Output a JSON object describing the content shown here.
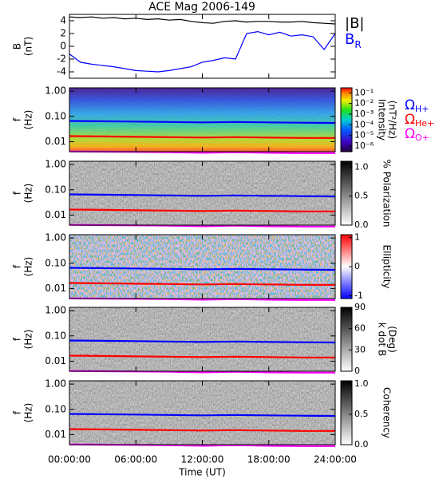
{
  "chart_data": [
    {
      "type": "line",
      "title": "ACE Mag 2006-149",
      "ylabel": [
        "B",
        "(nT)"
      ],
      "x": [
        0,
        1,
        2,
        3,
        4,
        5,
        6,
        7,
        8,
        9,
        10,
        11,
        12,
        13,
        14,
        15,
        16,
        17,
        18,
        19,
        20,
        21,
        22,
        23,
        24
      ],
      "xlim": [
        0,
        24
      ],
      "ylim": [
        -5,
        5
      ],
      "yticks": [
        -4,
        -2,
        0,
        2,
        4
      ],
      "series": [
        {
          "name": "|B|",
          "color": "#000000",
          "values": [
            4.6,
            4.5,
            4.6,
            4.4,
            4.5,
            4.3,
            4.4,
            4.2,
            4.3,
            4.1,
            4.2,
            3.9,
            3.7,
            3.6,
            3.9,
            4.0,
            3.8,
            3.9,
            3.9,
            3.8,
            3.8,
            3.9,
            3.7,
            3.6,
            3.5
          ]
        },
        {
          "name": "B",
          "name_sub": "R",
          "color": "#0000ff",
          "values": [
            -1.2,
            -2.5,
            -2.8,
            -3.0,
            -3.2,
            -3.5,
            -3.8,
            -3.9,
            -4.0,
            -3.8,
            -3.5,
            -3.2,
            -2.5,
            -2.2,
            -1.8,
            -2.0,
            2.0,
            2.3,
            1.8,
            2.2,
            1.6,
            1.8,
            1.5,
            -0.5,
            2.0
          ]
        }
      ]
    },
    {
      "type": "spectrogram",
      "ylabel": [
        "f",
        "(Hz)"
      ],
      "log_y": true,
      "xlim": [
        0,
        24
      ],
      "ylim": [
        0.004,
        1.35
      ],
      "yticks": [
        {
          "value": 1,
          "label": "1.00"
        },
        {
          "value": 0.1,
          "label": "0.10"
        },
        0.01
      ],
      "colormap": "rainbow",
      "colorbar": {
        "label": [
          "Intensity",
          "(nT²/Hz)"
        ],
        "log": true,
        "lim": [
          3e-07,
          0.3
        ],
        "ticks": [
          {
            "value": 0.1,
            "label": "10⁻¹"
          },
          {
            "value": 0.01,
            "label": "10⁻²"
          },
          {
            "value": 0.001,
            "label": "10⁻³"
          },
          {
            "value": 0.0001,
            "label": "10⁻⁴"
          },
          {
            "value": 1e-05,
            "label": "10⁻⁵"
          },
          {
            "value": 1e-06,
            "label": "10⁻⁶"
          }
        ]
      },
      "x": [
        0,
        3,
        6,
        9,
        12,
        15,
        18,
        21,
        24
      ],
      "series": [
        {
          "name": "Ω",
          "name_sub": "H+",
          "color": "#0000ff",
          "values": [
            0.066,
            0.064,
            0.062,
            0.06,
            0.058,
            0.06,
            0.058,
            0.056,
            0.055
          ]
        },
        {
          "name": "Ω",
          "name_sub": "He+",
          "color": "#ff0000",
          "values": [
            0.0165,
            0.016,
            0.0155,
            0.015,
            0.0145,
            0.015,
            0.0145,
            0.014,
            0.014
          ]
        },
        {
          "name": "Ω",
          "name_sub": "O+",
          "color": "#ff00ff",
          "values": [
            0.0041,
            0.004,
            0.0039,
            0.0038,
            0.0036,
            0.0038,
            0.0036,
            0.0035,
            0.0035
          ]
        }
      ]
    },
    {
      "type": "spectrogram",
      "ylabel": [
        "f",
        "(Hz)"
      ],
      "log_y": true,
      "xlim": [
        0,
        24
      ],
      "ylim": [
        0.004,
        1.35
      ],
      "yticks": [
        {
          "value": 1,
          "label": "1.00"
        },
        {
          "value": 0.1,
          "label": "0.10"
        },
        0.01
      ],
      "colormap": "grey",
      "colorbar": {
        "label": [
          "% Polarization"
        ],
        "lim": [
          0,
          1.1
        ],
        "ticks": [
          {
            "value": 0,
            "label": "0.0"
          },
          {
            "value": 0.5,
            "label": "0.5"
          },
          {
            "value": 1,
            "label": "1.0"
          }
        ]
      },
      "x": [
        0,
        3,
        6,
        9,
        12,
        15,
        18,
        21,
        24
      ],
      "series": [
        {
          "color": "#0000ff",
          "values": [
            0.066,
            0.064,
            0.062,
            0.06,
            0.058,
            0.06,
            0.058,
            0.056,
            0.055
          ]
        },
        {
          "color": "#ff0000",
          "values": [
            0.0165,
            0.016,
            0.0155,
            0.015,
            0.0145,
            0.015,
            0.0145,
            0.014,
            0.014
          ]
        },
        {
          "color": "#ff00ff",
          "values": [
            0.0041,
            0.004,
            0.0039,
            0.0038,
            0.0036,
            0.0038,
            0.0036,
            0.0035,
            0.0035
          ]
        }
      ]
    },
    {
      "type": "spectrogram",
      "ylabel": [
        "f",
        "(Hz)"
      ],
      "log_y": true,
      "xlim": [
        0,
        24
      ],
      "ylim": [
        0.004,
        1.35
      ],
      "yticks": [
        {
          "value": 1,
          "label": "1.00"
        },
        {
          "value": 0.1,
          "label": "0.10"
        },
        0.01
      ],
      "colormap": "bwr",
      "colorbar": {
        "label": [
          "Ellipticity"
        ],
        "lim": [
          -1.1,
          1.1
        ],
        "ticks": [
          1,
          0,
          -1
        ]
      },
      "x": [
        0,
        3,
        6,
        9,
        12,
        15,
        18,
        21,
        24
      ],
      "series": [
        {
          "color": "#0000ff",
          "values": [
            0.066,
            0.064,
            0.062,
            0.06,
            0.058,
            0.06,
            0.058,
            0.056,
            0.055
          ]
        },
        {
          "color": "#ff0000",
          "values": [
            0.0165,
            0.016,
            0.0155,
            0.015,
            0.0145,
            0.015,
            0.0145,
            0.014,
            0.014
          ]
        },
        {
          "color": "#ff00ff",
          "values": [
            0.0041,
            0.004,
            0.0039,
            0.0038,
            0.0036,
            0.0038,
            0.0036,
            0.0035,
            0.0035
          ]
        }
      ]
    },
    {
      "type": "spectrogram",
      "ylabel": [
        "f",
        "(Hz)"
      ],
      "log_y": true,
      "xlim": [
        0,
        24
      ],
      "ylim": [
        0.004,
        1.35
      ],
      "yticks": [
        {
          "value": 1,
          "label": "1.00"
        },
        {
          "value": 0.1,
          "label": "0.10"
        },
        0.01
      ],
      "colormap": "grey",
      "colorbar": {
        "label": [
          "k dot B",
          "(Deg)"
        ],
        "lim": [
          0,
          90
        ],
        "ticks": [
          0,
          30,
          60,
          90
        ]
      },
      "x": [
        0,
        3,
        6,
        9,
        12,
        15,
        18,
        21,
        24
      ],
      "series": [
        {
          "color": "#0000ff",
          "values": [
            0.066,
            0.064,
            0.062,
            0.06,
            0.058,
            0.06,
            0.058,
            0.056,
            0.055
          ]
        },
        {
          "color": "#ff0000",
          "values": [
            0.0165,
            0.016,
            0.0155,
            0.015,
            0.0145,
            0.015,
            0.0145,
            0.014,
            0.014
          ]
        },
        {
          "color": "#ff00ff",
          "values": [
            0.0041,
            0.004,
            0.0039,
            0.0038,
            0.0036,
            0.0038,
            0.0036,
            0.0035,
            0.0035
          ]
        }
      ]
    },
    {
      "type": "spectrogram",
      "ylabel": [
        "f",
        "(Hz)"
      ],
      "log_y": true,
      "xlim": [
        0,
        24
      ],
      "ylim": [
        0.004,
        1.35
      ],
      "yticks": [
        {
          "value": 1,
          "label": "1.00"
        },
        {
          "value": 0.1,
          "label": "0.10"
        },
        0.01
      ],
      "colormap": "grey",
      "colorbar": {
        "label": [
          "Coherency"
        ],
        "lim": [
          0,
          1.05
        ],
        "ticks": [
          {
            "value": 0,
            "label": "0.0"
          },
          {
            "value": 0.5,
            "label": "0.5"
          },
          {
            "value": 1,
            "label": "1.0"
          }
        ]
      },
      "x": [
        0,
        3,
        6,
        9,
        12,
        15,
        18,
        21,
        24
      ],
      "xlabel": "Time (UT)",
      "xticks": [
        {
          "value": 0,
          "label": "00:00:00"
        },
        {
          "value": 6,
          "label": "06:00:00"
        },
        {
          "value": 12,
          "label": "12:00:00"
        },
        {
          "value": 18,
          "label": "18:00:00"
        },
        {
          "value": 24,
          "label": "24:00:00"
        }
      ],
      "series": [
        {
          "color": "#0000ff",
          "values": [
            0.066,
            0.064,
            0.062,
            0.06,
            0.058,
            0.06,
            0.058,
            0.056,
            0.055
          ]
        },
        {
          "color": "#ff0000",
          "values": [
            0.0165,
            0.016,
            0.0155,
            0.015,
            0.0145,
            0.015,
            0.0145,
            0.014,
            0.014
          ]
        },
        {
          "color": "#ff00ff",
          "values": [
            0.0041,
            0.004,
            0.0039,
            0.0038,
            0.0036,
            0.0038,
            0.0036,
            0.0035,
            0.0035
          ]
        }
      ]
    }
  ]
}
